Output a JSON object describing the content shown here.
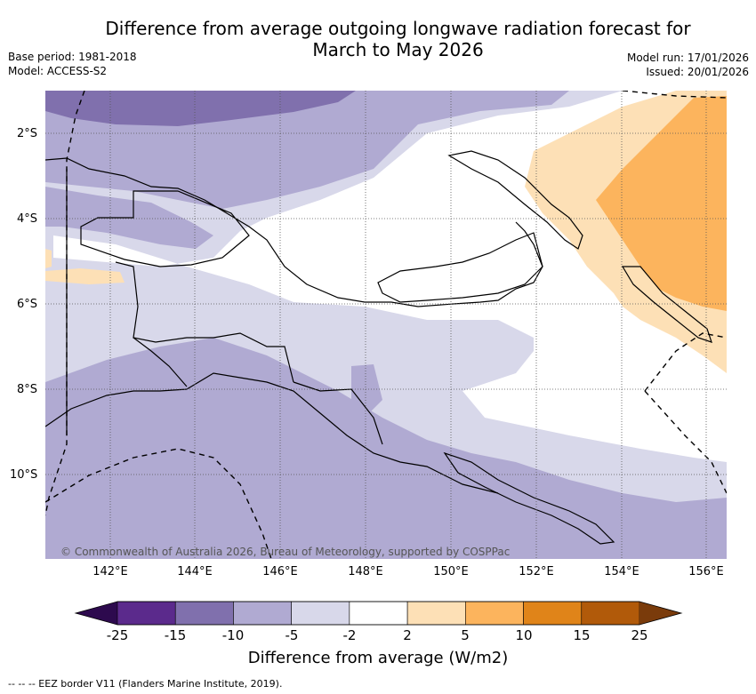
{
  "title_line1": "Difference from average outgoing longwave radiation forecast for",
  "title_line2": "March to May 2026",
  "base_period": "Base period: 1981-2018",
  "model": "Model: ACCESS-S2",
  "model_run": "Model run: 17/01/2026",
  "issued": "Issued: 20/01/2026",
  "lat_ticks": [
    "2°S",
    "4°S",
    "6°S",
    "8°S",
    "10°S"
  ],
  "lon_ticks": [
    "142°E",
    "144°E",
    "146°E",
    "148°E",
    "150°E",
    "152°E",
    "154°E",
    "156°E"
  ],
  "copyright": "© Commonwealth of Australia 2026, Bureau of Meteorology, supported by COSPPac",
  "colorbar": {
    "labels": [
      "-25",
      "-15",
      "-10",
      "-5",
      "-2",
      "2",
      "5",
      "10",
      "15",
      "25"
    ],
    "colors": [
      "#2d0a4e",
      "#5b2a8c",
      "#8070ad",
      "#b0aad2",
      "#d8d8ea",
      "#ffffff",
      "#fde0b6",
      "#fcb45d",
      "#e08419",
      "#b15a0a",
      "#7a3b0b"
    ],
    "title": "Difference from average (W/m2)"
  },
  "legend_line": "-- -- -- EEZ border V11 (Flanders Marine Institute, 2019).",
  "colors": {
    "dark_purple": "#8070ad",
    "mid_purple": "#b0aad2",
    "light_purple": "#d8d8ea",
    "light_orange": "#fde0b6",
    "orange": "#fcb45d"
  }
}
